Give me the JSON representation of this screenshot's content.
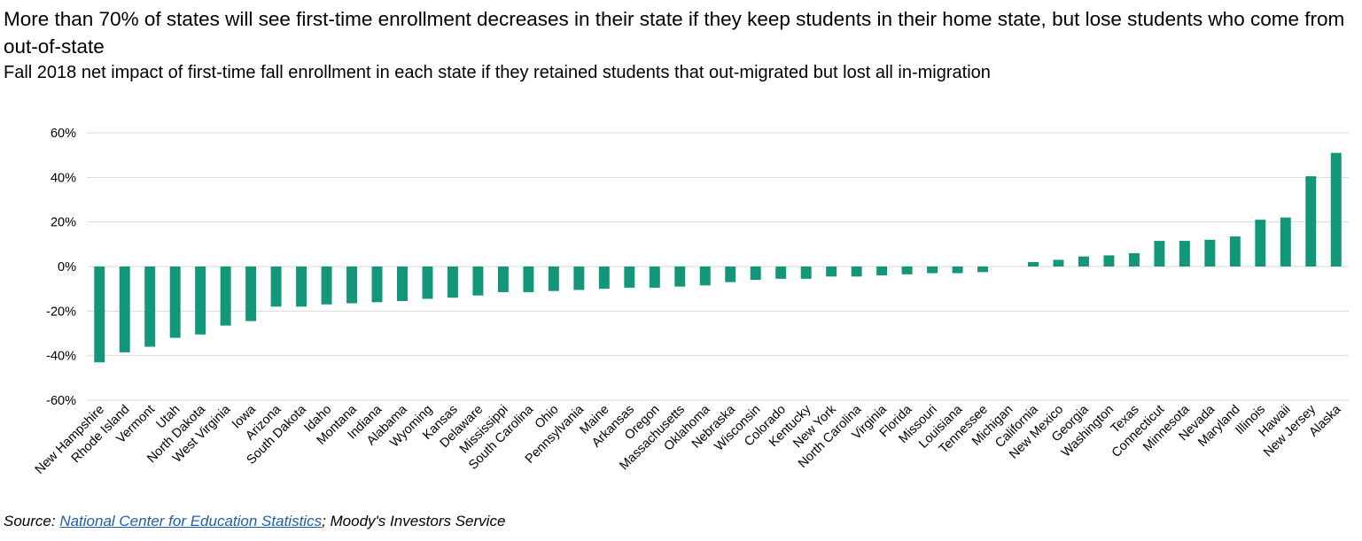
{
  "title": "More than 70% of states will see first-time enrollment decreases in their state if they keep students in their home state, but lose students who come from out-of-state",
  "subtitle": "Fall 2018 net impact of first-time fall enrollment in each state if they retained students that out-migrated but lost all in-migration",
  "source": {
    "prefix": "Source: ",
    "link_text": "National Center for Education Statistics",
    "suffix": "; Moody's Investors Service"
  },
  "colors": {
    "bar": "#13977a",
    "grid": "#d9d9d9",
    "link": "#1f5fa8"
  },
  "chart_data": {
    "type": "bar",
    "title": "More than 70% of states will see first-time enrollment decreases in their state if they keep students in their home state, but lose students who come from out-of-state",
    "subtitle": "Fall 2018 net impact of first-time fall enrollment in each state if they retained students that out-migrated but lost all in-migration",
    "xlabel": "",
    "ylabel": "",
    "ylim": [
      -60,
      60
    ],
    "yticks": [
      60,
      40,
      20,
      0,
      -20,
      -40,
      -60
    ],
    "ytick_labels": [
      "60%",
      "40%",
      "20%",
      "0%",
      "-20%",
      "-40%",
      "-60%"
    ],
    "grid": true,
    "legend": "none",
    "categories": [
      "New Hampshire",
      "Rhode Island",
      "Vermont",
      "Utah",
      "North Dakota",
      "West Virginia",
      "Iowa",
      "Arizona",
      "South Dakota",
      "Idaho",
      "Montana",
      "Indiana",
      "Alabama",
      "Wyoming",
      "Kansas",
      "Delaware",
      "Mississippi",
      "South Carolina",
      "Ohio",
      "Pennsylvania",
      "Maine",
      "Arkansas",
      "Oregon",
      "Massachusetts",
      "Oklahoma",
      "Nebraska",
      "Wisconsin",
      "Colorado",
      "Kentucky",
      "New York",
      "North Carolina",
      "Virginia",
      "Florida",
      "Missouri",
      "Louisiana",
      "Tennessee",
      "Michigan",
      "California",
      "New Mexico",
      "Georgia",
      "Washington",
      "Texas",
      "Connecticut",
      "Minnesota",
      "Nevada",
      "Maryland",
      "Illinois",
      "Hawaii",
      "New Jersey",
      "Alaska"
    ],
    "values": [
      -43,
      -38.5,
      -36,
      -32,
      -30.5,
      -26.5,
      -24.5,
      -18,
      -18,
      -17,
      -16.5,
      -16,
      -15.5,
      -14.5,
      -14,
      -13,
      -11.5,
      -11.5,
      -11,
      -10.5,
      -10,
      -9.5,
      -9.5,
      -9,
      -8.5,
      -7,
      -6,
      -5.5,
      -5.5,
      -4.5,
      -4.5,
      -4,
      -3.5,
      -3,
      -3,
      -2.5,
      0,
      2,
      3,
      4.5,
      5,
      6,
      11.5,
      11.5,
      12,
      13.5,
      21,
      22,
      40.5,
      51
    ]
  }
}
